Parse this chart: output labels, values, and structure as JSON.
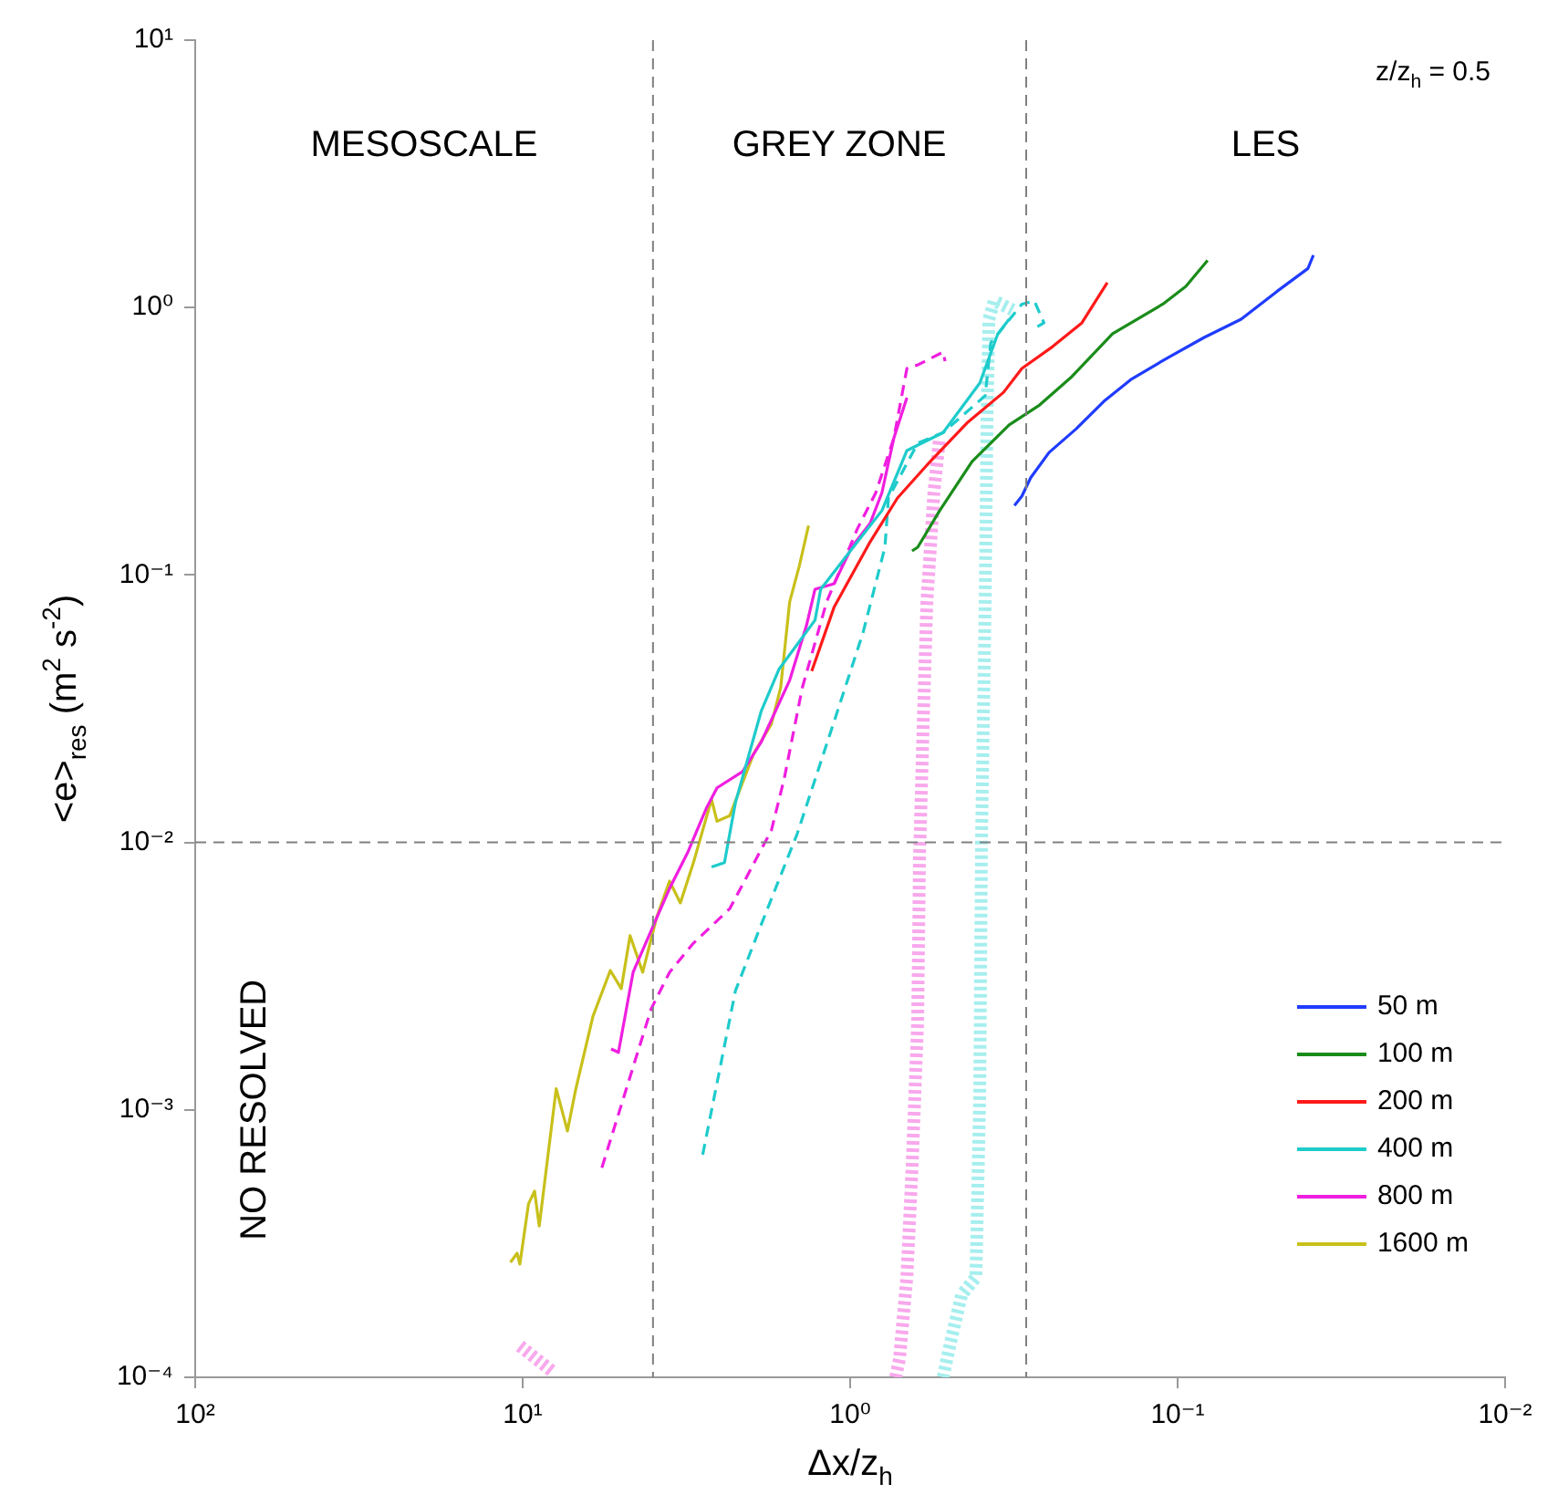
{
  "chart_data": {
    "type": "line",
    "xlabel": "Δx/z$_{h}$",
    "ylabel": "<e>$_{res}$ (m$^{2}$ s$^{-2}$)",
    "log": "xy",
    "grid": false,
    "legend": "bottom right",
    "marker": "none",
    "xlim": [
      100,
      0.01
    ],
    "xticks": [
      {
        "value": 100,
        "label": "10²"
      },
      {
        "value": 10,
        "label": "10¹"
      },
      {
        "value": 1,
        "label": "10⁰"
      },
      {
        "value": 0.1,
        "label": "10⁻¹"
      },
      {
        "value": 0.01,
        "label": "10⁻²"
      }
    ],
    "ylim": [
      0.0001,
      10
    ],
    "yticks": [
      {
        "value": 0.0001,
        "label": "10⁻⁴"
      },
      {
        "value": 0.001,
        "label": "10⁻³"
      },
      {
        "value": 0.01,
        "label": "10⁻²"
      },
      {
        "value": 0.1,
        "label": "10⁻¹"
      },
      {
        "value": 1,
        "label": "10⁰"
      },
      {
        "value": 10,
        "label": "10¹"
      }
    ],
    "ref_lines": [
      {
        "axis": "x",
        "value": 4,
        "color": "#808080",
        "line_style": "dashed"
      },
      {
        "axis": "x",
        "value": 0.29,
        "color": "#808080",
        "line_style": "dashed"
      },
      {
        "axis": "y",
        "value": 0.01,
        "color": "#808080",
        "line_style": "dashed"
      }
    ],
    "annotations": [
      "MESOSCALE",
      "GREY ZONE",
      "LES",
      "NO RESOLVED",
      "z/z$_{h}$ = 0.5"
    ],
    "series": [
      {
        "name": "50 m",
        "color": "#1f3cff",
        "line_style": "solid",
        "x": [
          0.315,
          0.299,
          0.281,
          0.247,
          0.204,
          0.168,
          0.139,
          0.107,
          0.083,
          0.064,
          0.0497,
          0.04,
          0.0385
        ],
        "values": [
          0.182,
          0.197,
          0.231,
          0.287,
          0.352,
          0.446,
          0.538,
          0.65,
          0.773,
          0.904,
          1.15,
          1.4,
          1.57
        ]
      },
      {
        "name": "100 m",
        "color": "#1a8c1a",
        "line_style": "solid",
        "x": [
          0.647,
          0.622,
          0.533,
          0.424,
          0.327,
          0.264,
          0.212,
          0.158,
          0.111,
          0.0944,
          0.081
        ],
        "values": [
          0.123,
          0.127,
          0.174,
          0.266,
          0.364,
          0.432,
          0.547,
          0.798,
          1.03,
          1.2,
          1.5
        ]
      },
      {
        "name": "200 m",
        "color": "#ff1a1a",
        "line_style": "solid",
        "x": [
          1.31,
          1.12,
          0.869,
          0.717,
          0.569,
          0.44,
          0.34,
          0.299,
          0.241,
          0.196,
          0.164
        ],
        "values": [
          0.0437,
          0.0757,
          0.133,
          0.194,
          0.266,
          0.37,
          0.482,
          0.592,
          0.714,
          0.877,
          1.24
        ]
      },
      {
        "name": "400 m",
        "color": "#1ecbcb",
        "line_style": "solid",
        "x": [
          2.65,
          2.42,
          2.24,
          1.87,
          1.65,
          1.28,
          1.23,
          0.95,
          0.8,
          0.671,
          0.52,
          0.402,
          0.354,
          0.327
        ],
        "values": [
          0.0081,
          0.0084,
          0.0141,
          0.0309,
          0.0444,
          0.0678,
          0.0885,
          0.133,
          0.174,
          0.292,
          0.341,
          0.522,
          0.798,
          0.904
        ]
      },
      {
        "name": "800 m",
        "color": "#f01ee0",
        "line_style": "solid",
        "x": [
          5.37,
          5.1,
          4.6,
          4.05,
          3.56,
          3.13,
          2.75,
          2.55,
          2.13,
          1.87,
          1.53,
          1.36,
          1.28,
          1.12,
          0.99,
          0.869,
          0.8,
          0.735,
          0.671
        ],
        "values": [
          0.00169,
          0.00164,
          0.00327,
          0.00469,
          0.00673,
          0.0092,
          0.0134,
          0.016,
          0.0184,
          0.0237,
          0.0404,
          0.0646,
          0.0885,
          0.0927,
          0.127,
          0.156,
          0.203,
          0.326,
          0.46
        ]
      },
      {
        "name": "1600 m",
        "color": "#c8c01a",
        "line_style": "solid",
        "x": [
          10.9,
          10.4,
          10.2,
          9.6,
          9.2,
          8.9,
          7.9,
          7.3,
          6.9,
          6.1,
          5.4,
          5,
          4.7,
          4.3,
          3.9,
          3.56,
          3.3,
          3.01,
          2.65,
          2.55,
          2.33,
          1.97,
          1.74,
          1.63,
          1.53,
          1.43,
          1.34
        ],
        "values": [
          0.000269,
          0.000291,
          0.000265,
          0.000445,
          0.000497,
          0.000368,
          0.0012,
          0.000834,
          0.00118,
          0.00224,
          0.00332,
          0.00284,
          0.00448,
          0.00327,
          0.00524,
          0.00717,
          0.00594,
          0.0084,
          0.0145,
          0.012,
          0.0126,
          0.0215,
          0.0277,
          0.0379,
          0.0793,
          0.108,
          0.153
        ]
      },
      {
        "color": "#f01ee0",
        "line_style": "dashed",
        "x": [
          5.73,
          4.05,
          3.56,
          3.01,
          2.33,
          1.74,
          1.59,
          1.4,
          1.18,
          0.95,
          0.835,
          0.735,
          0.671,
          0.622,
          0.52,
          0.513
        ],
        "values": [
          0.000608,
          0.00239,
          0.00327,
          0.0042,
          0.00566,
          0.0111,
          0.0173,
          0.0379,
          0.0793,
          0.149,
          0.203,
          0.326,
          0.592,
          0.61,
          0.682,
          0.63
        ]
      },
      {
        "color": "#1ecbcb",
        "line_style": "dashed",
        "x": [
          2.82,
          2.24,
          1.87,
          1.45,
          1.08,
          0.914,
          0.783,
          0.764,
          0.622,
          0.52,
          0.387,
          0.372,
          0.299,
          0.274,
          0.256,
          0.274
        ],
        "values": [
          0.00068,
          0.00279,
          0.00492,
          0.0108,
          0.0324,
          0.0607,
          0.127,
          0.194,
          0.311,
          0.341,
          0.468,
          0.738,
          1.03,
          1.06,
          0.877,
          0.835
        ]
      },
      {
        "color": "#f8a8ec",
        "line_style": "dotted",
        "x": [
          0.726,
          0.707,
          0.671,
          0.647,
          0.622,
          0.614,
          0.599,
          0.583,
          0.555,
          0.533
        ],
        "values": [
          0.0001,
          0.000117,
          0.000237,
          0.000608,
          0.00214,
          0.0088,
          0.0264,
          0.0793,
          0.203,
          0.326
        ]
      },
      {
        "color": "#f8a8ec",
        "line_style": "dotted",
        "x": [
          10.2,
          8.1
        ],
        "values": [
          0.000131,
          0.000105
        ]
      },
      {
        "color": "#a6eeee",
        "line_style": "dotted",
        "x": [
          0.52,
          0.5,
          0.457,
          0.413,
          0.402,
          0.397,
          0.387,
          0.382,
          0.377,
          0.363,
          0.319
        ],
        "values": [
          0.0001,
          0.000126,
          0.000203,
          0.000237,
          0.00114,
          0.0103,
          0.0793,
          0.381,
          0.904,
          1.06,
          0.98
        ]
      }
    ]
  }
}
